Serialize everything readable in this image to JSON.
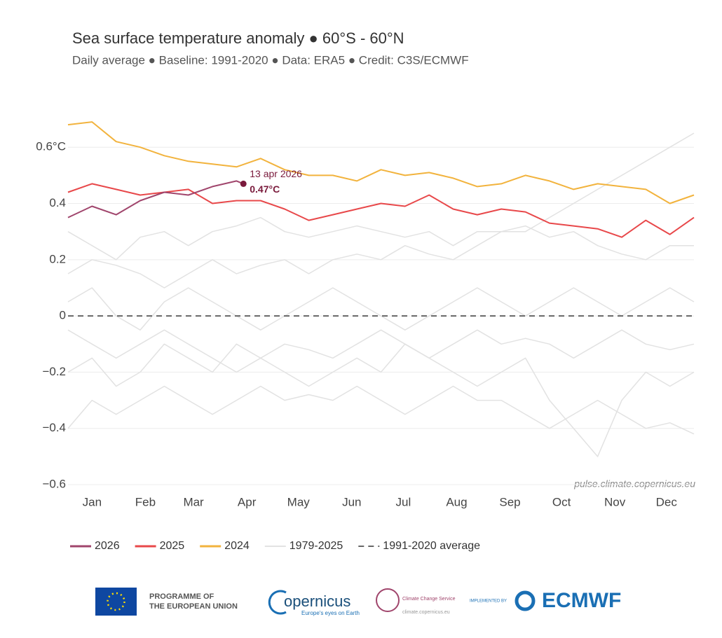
{
  "chart_data": {
    "type": "line",
    "title": "Sea surface temperature anomaly ● 60°S - 60°N",
    "subtitle": "Daily average ● Baseline: 1991-2020 ● Data: ERA5 ● Credit: C3S/ECMWF",
    "source": "pulse.climate.copernicus.eu",
    "grid": true,
    "xlim": [
      1,
      365
    ],
    "xticks": [
      {
        "value": 15,
        "label": "Jan"
      },
      {
        "value": 46,
        "label": "Feb"
      },
      {
        "value": 74,
        "label": "Mar"
      },
      {
        "value": 105,
        "label": "Apr"
      },
      {
        "value": 135,
        "label": "May"
      },
      {
        "value": 166,
        "label": "Jun"
      },
      {
        "value": 196,
        "label": "Jul"
      },
      {
        "value": 227,
        "label": "Aug"
      },
      {
        "value": 258,
        "label": "Sep"
      },
      {
        "value": 288,
        "label": "Oct"
      },
      {
        "value": 319,
        "label": "Nov"
      },
      {
        "value": 349,
        "label": "Dec"
      }
    ],
    "ylim": [
      -0.6,
      0.75
    ],
    "yticks": [
      {
        "value": -0.6,
        "label": "−0.6"
      },
      {
        "value": -0.4,
        "label": "−0.4"
      },
      {
        "value": -0.2,
        "label": "−0.2"
      },
      0,
      0.2,
      0.4,
      {
        "value": 0.6,
        "label": "0.6°C"
      }
    ],
    "x": [
      1,
      15,
      29,
      43,
      57,
      71,
      85,
      99,
      113,
      127,
      141,
      155,
      169,
      183,
      197,
      211,
      225,
      239,
      253,
      267,
      281,
      295,
      309,
      323,
      337,
      351,
      365
    ],
    "series": [
      {
        "name": "2026",
        "color": "#a0456c",
        "x": [
          1,
          15,
          29,
          43,
          57,
          71,
          85,
          99,
          103
        ],
        "values": [
          0.35,
          0.39,
          0.36,
          0.41,
          0.44,
          0.43,
          0.46,
          0.48,
          0.47
        ]
      },
      {
        "name": "2025",
        "color": "#e8484a",
        "values": [
          0.44,
          0.47,
          0.45,
          0.43,
          0.44,
          0.45,
          0.4,
          0.41,
          0.41,
          0.38,
          0.34,
          0.36,
          0.38,
          0.4,
          0.39,
          0.43,
          0.38,
          0.36,
          0.38,
          0.37,
          0.33,
          0.32,
          0.31,
          0.28,
          0.34,
          0.29,
          0.35
        ]
      },
      {
        "name": "2024",
        "color": "#f2b33d",
        "values": [
          0.68,
          0.69,
          0.62,
          0.6,
          0.57,
          0.55,
          0.54,
          0.53,
          0.56,
          0.52,
          0.5,
          0.5,
          0.48,
          0.52,
          0.5,
          0.51,
          0.49,
          0.46,
          0.47,
          0.5,
          0.48,
          0.45,
          0.47,
          0.46,
          0.45,
          0.4,
          0.43
        ]
      }
    ],
    "background": {
      "name": "1979-2025",
      "color": "#e2e2e2",
      "values": [
        [
          -0.2,
          -0.15,
          -0.25,
          -0.2,
          -0.1,
          -0.15,
          -0.2,
          -0.1,
          -0.15,
          -0.2,
          -0.25,
          -0.2,
          -0.15,
          -0.2,
          -0.1,
          -0.15,
          -0.2,
          -0.25,
          -0.2,
          -0.15,
          -0.3,
          -0.4,
          -0.5,
          -0.3,
          -0.2,
          -0.25,
          -0.2
        ],
        [
          0.05,
          0.1,
          0,
          -0.05,
          0.05,
          0.1,
          0.05,
          0,
          -0.05,
          0,
          0.05,
          0.1,
          0.05,
          0,
          -0.05,
          0,
          0.05,
          0.1,
          0.05,
          0,
          0.05,
          0.1,
          0.05,
          0,
          0.05,
          0.1,
          0.05
        ],
        [
          0.3,
          0.25,
          0.2,
          0.28,
          0.3,
          0.25,
          0.3,
          0.32,
          0.35,
          0.3,
          0.28,
          0.3,
          0.32,
          0.3,
          0.28,
          0.3,
          0.25,
          0.3,
          0.3,
          0.32,
          0.28,
          0.3,
          0.25,
          0.22,
          0.2,
          0.25,
          0.25
        ],
        [
          -0.4,
          -0.3,
          -0.35,
          -0.3,
          -0.25,
          -0.3,
          -0.35,
          -0.3,
          -0.25,
          -0.3,
          -0.28,
          -0.3,
          -0.25,
          -0.3,
          -0.35,
          -0.3,
          -0.25,
          -0.3,
          -0.3,
          -0.35,
          -0.4,
          -0.35,
          -0.3,
          -0.35,
          -0.4,
          -0.38,
          -0.42
        ],
        [
          -0.05,
          -0.1,
          -0.15,
          -0.1,
          -0.05,
          -0.1,
          -0.15,
          -0.2,
          -0.15,
          -0.1,
          -0.12,
          -0.15,
          -0.1,
          -0.05,
          -0.1,
          -0.15,
          -0.1,
          -0.05,
          -0.1,
          -0.08,
          -0.1,
          -0.15,
          -0.1,
          -0.05,
          -0.1,
          -0.12,
          -0.1
        ],
        [
          0.15,
          0.2,
          0.18,
          0.15,
          0.1,
          0.15,
          0.2,
          0.15,
          0.18,
          0.2,
          0.15,
          0.2,
          0.22,
          0.2,
          0.25,
          0.22,
          0.2,
          0.25,
          0.3,
          0.3,
          0.35,
          0.4,
          0.45,
          0.5,
          0.55,
          0.6,
          0.65
        ]
      ]
    },
    "baseline": {
      "name": "1991-2020 average",
      "value": 0,
      "color": "#666666"
    },
    "annotation": {
      "x": 103,
      "y": 0.47,
      "date": "13 apr 2026",
      "label": "0.47°C",
      "color": "#7a1a3c"
    }
  },
  "footer": {
    "eu_line1": "PROGRAMME OF",
    "eu_line2": "THE EUROPEAN UNION",
    "copernicus": "opernicus",
    "copernicus_tag": "Europe's eyes on Earth",
    "c3s": "Climate Change Service",
    "c3s_url": "climate.copernicus.eu",
    "implemented": "IMPLEMENTED BY",
    "ecmwf": "ECMWF"
  }
}
